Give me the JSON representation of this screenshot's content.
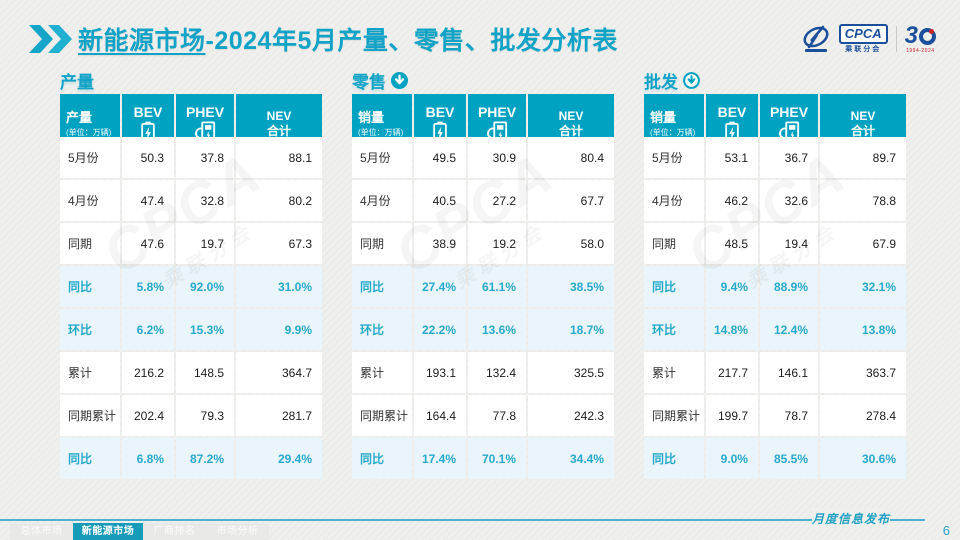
{
  "header": {
    "title_highlight": "新能源市场",
    "title_rest": "-2024年5月产量、零售、批发分析表",
    "logo": {
      "cpca": "CPCA",
      "cpca_sub": "乘联分会",
      "anniversary_number": "3",
      "anniversary_years": "1994-2024"
    }
  },
  "accent_color": "#00a2c2",
  "highlight_text_color": "#29a9cb",
  "highlight_row_bg": "#e9f5fa",
  "watermark": {
    "line1": "CPCA",
    "line2": "乘联分会"
  },
  "chart_data": [
    {
      "type": "table",
      "section_title": "产量",
      "section_icon": "none",
      "row_header": {
        "title": "产量",
        "unit": "(单位：万辆)"
      },
      "columns": [
        "BEV",
        "PHEV",
        "NEV 合计"
      ],
      "column_icons": [
        "battery-icon",
        "charging-station-icon",
        "none"
      ],
      "rows": [
        {
          "label": "5月份",
          "values": [
            "50.3",
            "37.8",
            "88.1"
          ],
          "type": "normal"
        },
        {
          "label": "4月份",
          "values": [
            "47.4",
            "32.8",
            "80.2"
          ],
          "type": "normal"
        },
        {
          "label": "同期",
          "values": [
            "47.6",
            "19.7",
            "67.3"
          ],
          "type": "normal"
        },
        {
          "label": "同比",
          "values": [
            "5.8%",
            "92.0%",
            "31.0%"
          ],
          "type": "highlight"
        },
        {
          "label": "环比",
          "values": [
            "6.2%",
            "15.3%",
            "9.9%"
          ],
          "type": "highlight"
        },
        {
          "label": "累计",
          "values": [
            "216.2",
            "148.5",
            "364.7"
          ],
          "type": "normal"
        },
        {
          "label": "同期累计",
          "values": [
            "202.4",
            "79.3",
            "281.7"
          ],
          "type": "normal"
        },
        {
          "label": "同比",
          "values": [
            "6.8%",
            "87.2%",
            "29.4%"
          ],
          "type": "highlight"
        }
      ]
    },
    {
      "type": "table",
      "section_title": "零售",
      "section_icon": "down-arrow-filled-icon",
      "row_header": {
        "title": "销量",
        "unit": "(单位：万辆)"
      },
      "columns": [
        "BEV",
        "PHEV",
        "NEV 合计"
      ],
      "column_icons": [
        "battery-icon",
        "charging-station-icon",
        "none"
      ],
      "rows": [
        {
          "label": "5月份",
          "values": [
            "49.5",
            "30.9",
            "80.4"
          ],
          "type": "normal"
        },
        {
          "label": "4月份",
          "values": [
            "40.5",
            "27.2",
            "67.7"
          ],
          "type": "normal"
        },
        {
          "label": "同期",
          "values": [
            "38.9",
            "19.2",
            "58.0"
          ],
          "type": "normal"
        },
        {
          "label": "同比",
          "values": [
            "27.4%",
            "61.1%",
            "38.5%"
          ],
          "type": "highlight"
        },
        {
          "label": "环比",
          "values": [
            "22.2%",
            "13.6%",
            "18.7%"
          ],
          "type": "highlight"
        },
        {
          "label": "累计",
          "values": [
            "193.1",
            "132.4",
            "325.5"
          ],
          "type": "normal"
        },
        {
          "label": "同期累计",
          "values": [
            "164.4",
            "77.8",
            "242.3"
          ],
          "type": "normal"
        },
        {
          "label": "同比",
          "values": [
            "17.4%",
            "70.1%",
            "34.4%"
          ],
          "type": "highlight"
        }
      ]
    },
    {
      "type": "table",
      "section_title": "批发",
      "section_icon": "down-arrow-outline-icon",
      "row_header": {
        "title": "销量",
        "unit": "(单位：万辆)"
      },
      "columns": [
        "BEV",
        "PHEV",
        "NEV 合计"
      ],
      "column_icons": [
        "battery-icon",
        "charging-station-icon",
        "none"
      ],
      "rows": [
        {
          "label": "5月份",
          "values": [
            "53.1",
            "36.7",
            "89.7"
          ],
          "type": "normal"
        },
        {
          "label": "4月份",
          "values": [
            "46.2",
            "32.6",
            "78.8"
          ],
          "type": "normal"
        },
        {
          "label": "同期",
          "values": [
            "48.5",
            "19.4",
            "67.9"
          ],
          "type": "normal"
        },
        {
          "label": "同比",
          "values": [
            "9.4%",
            "88.9%",
            "32.1%"
          ],
          "type": "highlight"
        },
        {
          "label": "环比",
          "values": [
            "14.8%",
            "12.4%",
            "13.8%"
          ],
          "type": "highlight"
        },
        {
          "label": "累计",
          "values": [
            "217.7",
            "146.1",
            "363.7"
          ],
          "type": "normal"
        },
        {
          "label": "同期累计",
          "values": [
            "199.7",
            "78.7",
            "278.4"
          ],
          "type": "normal"
        },
        {
          "label": "同比",
          "values": [
            "9.0%",
            "85.5%",
            "30.6%"
          ],
          "type": "highlight"
        }
      ]
    }
  ],
  "footer": {
    "tabs": [
      {
        "label": "总体市场",
        "active": false
      },
      {
        "label": "新能源市场",
        "active": true
      },
      {
        "label": "厂商排名",
        "active": false
      },
      {
        "label": "市场分析",
        "active": false
      }
    ],
    "script_text": "月度信息发布",
    "page_number": "6"
  }
}
